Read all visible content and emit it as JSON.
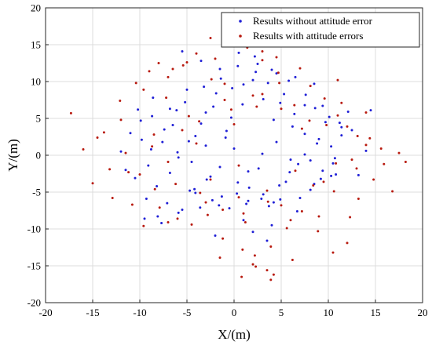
{
  "chart_data": {
    "type": "scatter",
    "title": "",
    "xlabel": "X/(m)",
    "ylabel": "Y/(m)",
    "xlim": [
      -20,
      20
    ],
    "ylim": [
      -20,
      20
    ],
    "xticks": [
      -20,
      -15,
      -10,
      -5,
      0,
      5,
      10,
      15,
      20
    ],
    "yticks": [
      -20,
      -15,
      -10,
      -5,
      0,
      5,
      10,
      15,
      20
    ],
    "grid": true,
    "legend_position": "top-right",
    "series": [
      {
        "name": "Results without attitude error",
        "color": "#1f1fd6",
        "x": [
          -10.2,
          -9.8,
          -9.1,
          -8.7,
          -8.2,
          -7.6,
          -7.1,
          -6.5,
          -5.9,
          -5.2,
          -4.7,
          -4.1,
          -3.6,
          -3.0,
          -2.5,
          -1.9,
          -1.3,
          -0.8,
          -0.2,
          0.4,
          0.9,
          1.5,
          2.0,
          2.6,
          3.1,
          3.7,
          4.2,
          4.8,
          5.3,
          5.9,
          6.4,
          7.0,
          7.5,
          8.1,
          8.6,
          9.2,
          9.7,
          10.3,
          10.8,
          11.4,
          -10.5,
          -9.9,
          -9.3,
          -8.8,
          -8.1,
          -7.4,
          -6.8,
          -6.1,
          -5.5,
          -4.8,
          -4.2,
          -3.5,
          -2.9,
          -2.2,
          -1.6,
          -0.9,
          -0.3,
          0.3,
          1.0,
          1.6,
          2.3,
          2.9,
          3.6,
          4.2,
          4.9,
          5.5,
          6.2,
          6.8,
          7.5,
          8.1,
          8.8,
          9.4,
          10.1,
          10.7,
          11.4,
          -9.5,
          -8.6,
          -7.7,
          -6.8,
          -5.9,
          -5.0,
          -4.1,
          -3.2,
          -2.3,
          -1.4,
          -0.5,
          0.4,
          1.3,
          2.2,
          3.1,
          4.0,
          4.9,
          5.8,
          6.7,
          7.6,
          8.5,
          9.4,
          10.3,
          11.2,
          12.1,
          -6.0,
          -4.5,
          -3.0,
          -1.5,
          0.0,
          1.5,
          3.0,
          4.5,
          6.0,
          7.5,
          9.0,
          10.5,
          -5.5,
          -3.5,
          -1.5,
          0.5,
          2.5,
          4.5,
          6.5,
          8.5,
          2.0,
          3.5,
          4.0,
          1.0,
          -2.0,
          12.5,
          13.2,
          14.0,
          14.5,
          -11.0,
          -11.5,
          -12.0
        ],
        "y": [
          6.2,
          2.1,
          -1.4,
          5.3,
          -4.2,
          1.8,
          -6.5,
          4.1,
          -0.3,
          7.2,
          -4.8,
          2.6,
          -7.1,
          5.8,
          -2.9,
          8.4,
          -5.6,
          3.3,
          9.1,
          -3.7,
          6.9,
          -6.2,
          10.2,
          -1.8,
          7.6,
          -6.9,
          4.8,
          -4.1,
          8.3,
          -2.3,
          5.6,
          -5.8,
          2.9,
          -0.7,
          6.4,
          -3.2,
          4.5,
          1.2,
          -2.6,
          3.8,
          -3.1,
          4.7,
          -5.9,
          0.8,
          -8.3,
          3.5,
          -2.4,
          6.1,
          -7.4,
          1.9,
          -4.6,
          4.3,
          -3.3,
          6.6,
          -6.8,
          2.4,
          5.1,
          -5.2,
          9.6,
          -4.4,
          11.3,
          -5.9,
          9.8,
          -6.4,
          7.1,
          -3.6,
          3.9,
          -1.2,
          6.8,
          -4.7,
          1.6,
          -2.1,
          5.2,
          -0.4,
          2.7,
          -8.6,
          7.8,
          -9.2,
          6.3,
          -7.8,
          8.9,
          -5.1,
          9.3,
          -6.1,
          10.4,
          -7.2,
          12.1,
          -6.6,
          13.4,
          -5.3,
          11.6,
          -6.0,
          10.1,
          -7.6,
          8.2,
          -3.9,
          6.7,
          -2.8,
          4.4,
          5.9,
          0.4,
          -0.9,
          1.3,
          -1.6,
          0.9,
          -2.2,
          0.2,
          1.8,
          -0.6,
          0.1,
          2.2,
          -1.1,
          14.1,
          12.8,
          11.7,
          13.9,
          12.4,
          11.1,
          10.6,
          9.7,
          -10.4,
          -11.6,
          -9.5,
          -8.8,
          -10.9,
          3.4,
          -2.7,
          0.6,
          6.1,
          3.0,
          -2.0,
          0.5
        ]
      },
      {
        "name": "Results with attitude errors",
        "color": "#b81a0f",
        "x": [
          -13.8,
          -12.9,
          -12.1,
          -11.2,
          -10.4,
          -9.6,
          -8.7,
          -7.9,
          -7.0,
          -6.2,
          -5.4,
          -4.5,
          -3.7,
          -2.8,
          -2.0,
          -1.2,
          -0.3,
          0.5,
          1.4,
          2.2,
          3.0,
          3.9,
          4.7,
          5.6,
          6.4,
          7.2,
          8.1,
          8.9,
          9.8,
          10.6,
          11.4,
          12.3,
          13.1,
          14.0,
          14.8,
          15.6,
          -13.2,
          -12.0,
          -10.8,
          -9.6,
          -8.4,
          -7.2,
          -6.0,
          -4.8,
          -3.6,
          -2.4,
          -1.2,
          0.0,
          1.2,
          2.4,
          3.6,
          4.8,
          6.0,
          7.2,
          8.4,
          9.6,
          10.8,
          12.0,
          13.2,
          14.4,
          -11.5,
          -10.0,
          -8.5,
          -7.0,
          -5.5,
          -4.0,
          -2.5,
          -1.0,
          0.5,
          2.0,
          3.5,
          5.0,
          6.5,
          8.0,
          9.5,
          11.0,
          12.5,
          14.0,
          -9.0,
          -7.0,
          -5.0,
          -3.0,
          -1.0,
          1.0,
          3.0,
          5.0,
          7.0,
          9.0,
          11.0,
          13.0,
          -17.3,
          -16.0,
          -15.0,
          -14.5,
          15.9,
          16.8,
          17.5,
          18.2,
          3.9,
          4.2,
          3.5,
          2.0,
          0.8,
          -1.5,
          6.2,
          1.5,
          3.0,
          4.5,
          -2.5,
          -4.0,
          10.5,
          12.0,
          -8.0,
          -6.5,
          0.9,
          2.3
        ],
        "y": [
          3.1,
          -5.8,
          7.4,
          -2.3,
          9.8,
          -9.6,
          1.2,
          -7.1,
          10.6,
          -3.9,
          12.2,
          -9.4,
          4.6,
          -8.1,
          13.1,
          -11.3,
          6.2,
          -5.7,
          14.6,
          -13.6,
          8.3,
          -12.4,
          11.2,
          -9.9,
          6.8,
          -7.6,
          9.4,
          -10.3,
          4.1,
          -4.9,
          7.1,
          -8.4,
          2.6,
          5.8,
          -3.3,
          0.9,
          -1.9,
          4.8,
          -6.7,
          8.9,
          -4.6,
          7.8,
          -8.6,
          5.3,
          -5.1,
          10.3,
          -7.4,
          4.2,
          -9.1,
          6.6,
          -6.3,
          9.8,
          -8.8,
          3.6,
          -4.1,
          7.7,
          -1.1,
          3.9,
          -5.9,
          2.3,
          0.3,
          -2.6,
          2.8,
          -0.9,
          3.4,
          1.6,
          -3.3,
          7.5,
          -1.4,
          8.1,
          -4.8,
          6.3,
          -2.1,
          4.7,
          -3.6,
          5.4,
          -0.6,
          1.4,
          11.4,
          -9.1,
          12.6,
          -6.4,
          9.7,
          -7.9,
          12.9,
          -6.8,
          11.8,
          -8.3,
          10.2,
          -1.8,
          5.7,
          0.8,
          -3.8,
          2.4,
          -1.2,
          -4.9,
          0.3,
          -0.9,
          -16.9,
          -16.2,
          -15.6,
          -14.8,
          -16.5,
          -13.9,
          -14.2,
          15.4,
          14.1,
          13.3,
          15.9,
          13.8,
          -13.2,
          -11.9,
          12.5,
          11.7,
          -12.8,
          -15.1
        ]
      }
    ]
  }
}
